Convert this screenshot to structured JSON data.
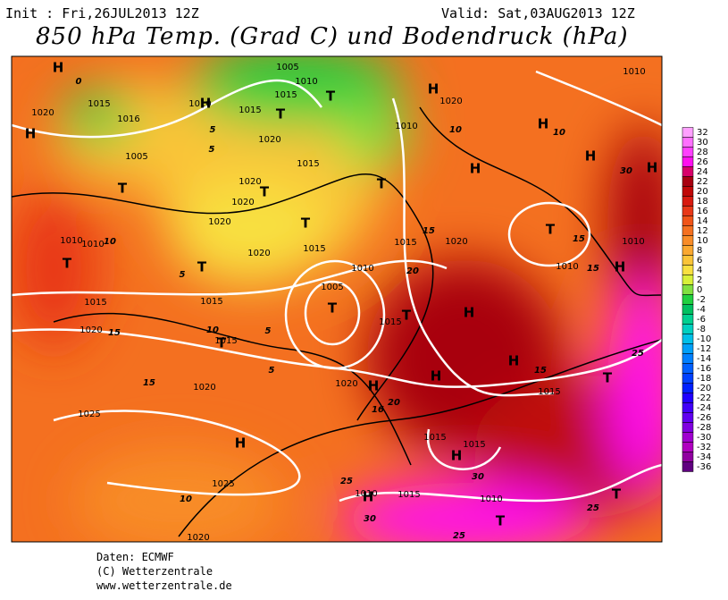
{
  "header": {
    "init": "Init : Fri,26JUL2013 12Z",
    "valid": "Valid: Sat,03AUG2013 12Z",
    "title": "850 hPa Temp. (Grad C) und Bodendruck (hPa)"
  },
  "footer": [
    "Daten: ECMWF",
    "(C) Wetterzentrale",
    "www.wetterzentrale.de"
  ],
  "colorbar": {
    "labels": [
      32,
      30,
      28,
      26,
      24,
      22,
      20,
      18,
      16,
      14,
      12,
      10,
      8,
      6,
      4,
      2,
      0,
      -2,
      -4,
      -6,
      -8,
      -10,
      -12,
      -14,
      -16,
      -18,
      -20,
      -22,
      -24,
      -26,
      -28,
      -30,
      -32,
      -34,
      -36
    ],
    "colors": [
      "#ffa0ff",
      "#ff70ff",
      "#ff40ff",
      "#ff10f0",
      "#d8006a",
      "#a80010",
      "#c00808",
      "#d81a10",
      "#e83818",
      "#f05418",
      "#f47020",
      "#f88c28",
      "#faa830",
      "#fac438",
      "#f8e040",
      "#d8f038",
      "#80e040",
      "#20d040",
      "#00c060",
      "#00d090",
      "#00d0c0",
      "#00c0e8",
      "#00a0f8",
      "#0080ff",
      "#0060ff",
      "#0040ff",
      "#0020ff",
      "#2000ff",
      "#4000f8",
      "#6000f0",
      "#8000e0",
      "#a000d0",
      "#b000c0",
      "#9000a0",
      "#600080"
    ]
  },
  "map_labels": [
    "1005",
    "1010",
    "1015",
    "1010",
    "1020",
    "1015",
    "1010",
    "1015",
    "1016",
    "1020",
    "1010",
    "1020",
    "1005",
    "1015",
    "1020",
    "1020",
    "1020",
    "1015",
    "1020",
    "1010",
    "1005",
    "1010",
    "1010",
    "1015",
    "1020",
    "1010",
    "1010",
    "1015",
    "1015",
    "1020",
    "1015",
    "1020",
    "1015",
    "1020",
    "1025",
    "1015",
    "1015",
    "1025",
    "1010",
    "1015",
    "1010",
    "1020",
    "1015",
    "0",
    "5",
    "5",
    "10",
    "5",
    "10",
    "5",
    "5",
    "15",
    "15",
    "15",
    "20",
    "15",
    "15",
    "10",
    "10",
    "30",
    "15",
    "25",
    "16",
    "20",
    "30",
    "25",
    "30",
    "25",
    "25",
    "10",
    "H",
    "H",
    "H",
    "H",
    "H",
    "H",
    "H",
    "H",
    "H",
    "H",
    "H",
    "H",
    "H",
    "H",
    "H",
    "H",
    "T",
    "T",
    "T",
    "T",
    "T",
    "T",
    "T",
    "T",
    "T",
    "T",
    "T",
    "T",
    "T",
    "T",
    "T"
  ]
}
